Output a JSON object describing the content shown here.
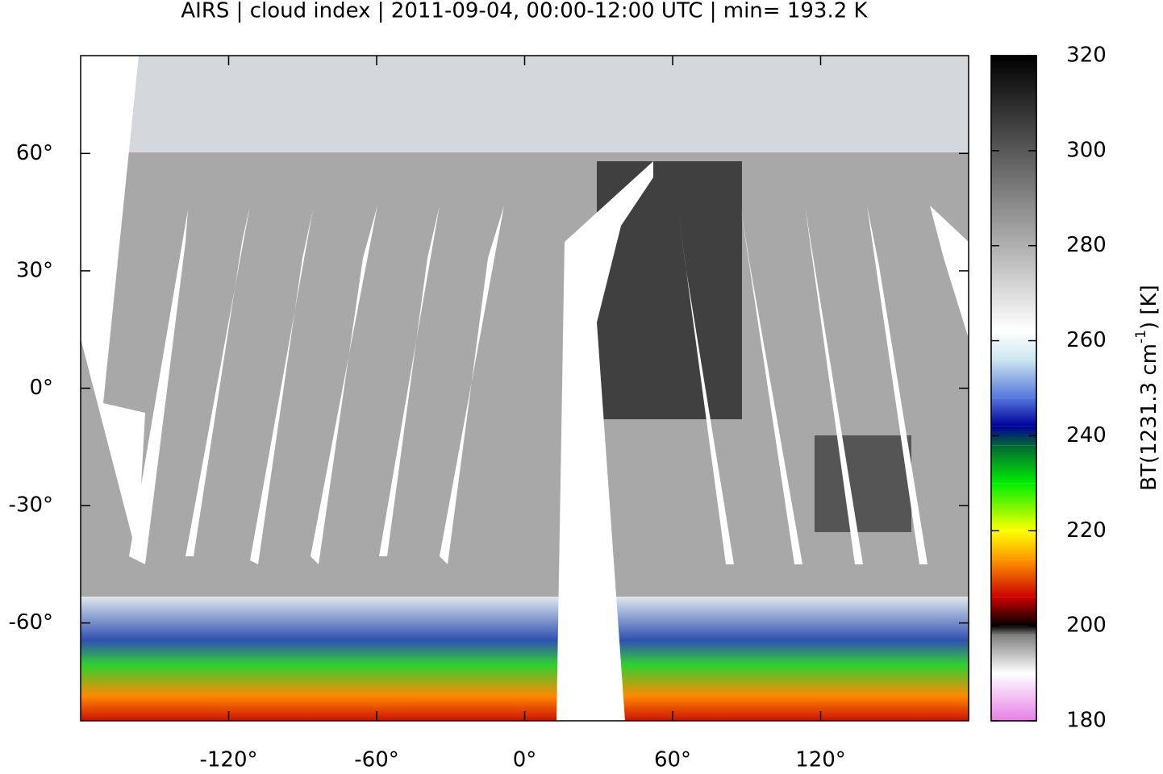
{
  "chart_data": {
    "type": "map",
    "title": "AIRS | cloud index | 2011-09-04, 00:00-12:00 UTC | min= 193.2 K",
    "xlim": [
      -180,
      180
    ],
    "ylim": [
      -85,
      85
    ],
    "xticks": [
      {
        "value": -120,
        "label": "-120°"
      },
      {
        "value": -60,
        "label": "-60°"
      },
      {
        "value": 0,
        "label": "0°"
      },
      {
        "value": 60,
        "label": "60°"
      },
      {
        "value": 120,
        "label": "120°"
      }
    ],
    "yticks": [
      {
        "value": -60,
        "label": "-60°"
      },
      {
        "value": -30,
        "label": "-30°"
      },
      {
        "value": 0,
        "label": "0°"
      },
      {
        "value": 30,
        "label": "30°"
      },
      {
        "value": 60,
        "label": "60°"
      }
    ],
    "colorbar": {
      "label": [
        "BT(1231.3 cm",
        "-1",
        ") [K]"
      ],
      "lim": [
        180,
        320
      ],
      "ticks": [
        180,
        200,
        220,
        240,
        260,
        280,
        300,
        320
      ],
      "colormap": [
        {
          "value": 180,
          "color": "#e680e6"
        },
        {
          "value": 190,
          "color": "#ffffff"
        },
        {
          "value": 198,
          "color": "#808080"
        },
        {
          "value": 200,
          "color": "#000000"
        },
        {
          "value": 206,
          "color": "#cc0000"
        },
        {
          "value": 214,
          "color": "#ff9900"
        },
        {
          "value": 220,
          "color": "#ffff00"
        },
        {
          "value": 230,
          "color": "#00ee00"
        },
        {
          "value": 238,
          "color": "#006633"
        },
        {
          "value": 242,
          "color": "#000099"
        },
        {
          "value": 248,
          "color": "#5577dd"
        },
        {
          "value": 256,
          "color": "#cce6f0"
        },
        {
          "value": 262,
          "color": "#ffffff"
        },
        {
          "value": 320,
          "color": "#000000"
        }
      ]
    }
  }
}
